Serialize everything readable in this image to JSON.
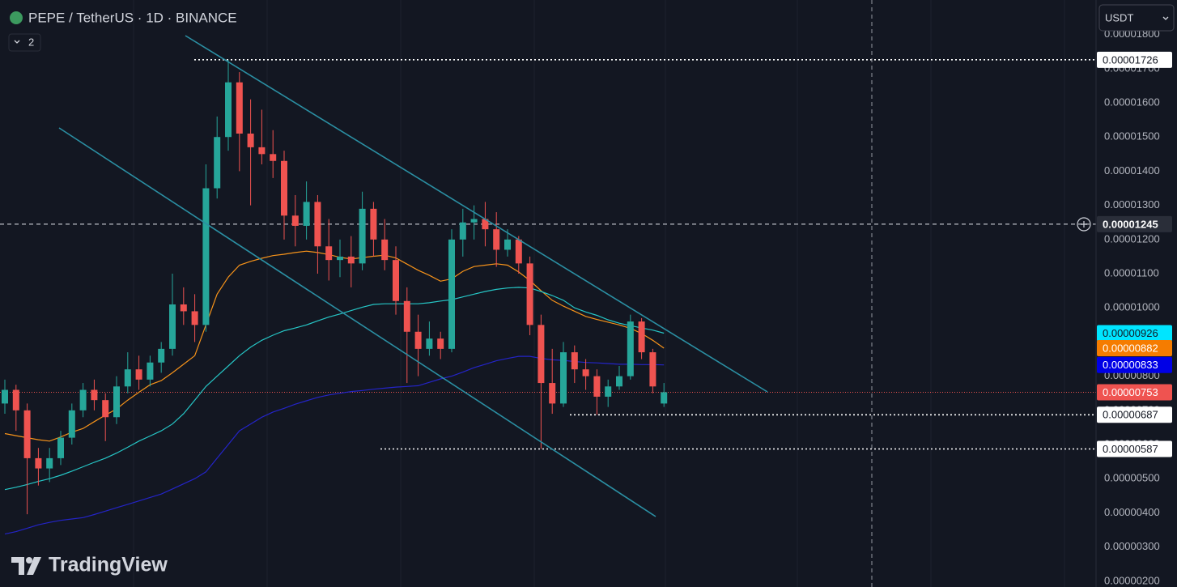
{
  "chart_data": {
    "type": "candlestick",
    "title": "PEPE / TetherUS · 1D · BINANCE",
    "indicator_count": "2",
    "currency": "USDT",
    "brand": "TradingView",
    "ylim": [
      1.83e-06,
      1.901e-05
    ],
    "grid": true,
    "up_color": "#26a69a",
    "down_color": "#ef5350",
    "yticks": [
      {
        "value": 1.8e-05,
        "label": "0.00001800"
      },
      {
        "value": 1.7e-05,
        "label": "0.00001700"
      },
      {
        "value": 1.6e-05,
        "label": "0.00001600"
      },
      {
        "value": 1.5e-05,
        "label": "0.00001500"
      },
      {
        "value": 1.4e-05,
        "label": "0.00001400"
      },
      {
        "value": 1.3e-05,
        "label": "0.00001300"
      },
      {
        "value": 1.2e-05,
        "label": "0.00001200"
      },
      {
        "value": 1.1e-05,
        "label": "0.00001100"
      },
      {
        "value": 1e-05,
        "label": "0.00001000"
      },
      {
        "value": 9e-06,
        "label": "0.00000900"
      },
      {
        "value": 8e-06,
        "label": "0.00000800"
      },
      {
        "value": 7e-06,
        "label": "0.00000700"
      },
      {
        "value": 6e-06,
        "label": "0.00000600"
      },
      {
        "value": 5e-06,
        "label": "0.00000500"
      },
      {
        "value": 4e-06,
        "label": "0.00000400"
      },
      {
        "value": 3e-06,
        "label": "0.00000300"
      },
      {
        "value": 2e-06,
        "label": "0.00000200"
      }
    ],
    "candles": {
      "open": [
        7.2e-06,
        7.6e-06,
        7e-06,
        5.6e-06,
        5.3e-06,
        5.6e-06,
        6.2e-06,
        7e-06,
        7.6e-06,
        7.3e-06,
        6.8e-06,
        7.7e-06,
        8.2e-06,
        7.9e-06,
        8.4e-06,
        8.8e-06,
        1.01e-05,
        9.9e-06,
        9.5e-06,
        1.35e-05,
        1.5e-05,
        1.66e-05,
        1.51e-05,
        1.47e-05,
        1.45e-05,
        1.43e-05,
        1.27e-05,
        1.24e-05,
        1.31e-05,
        1.18e-05,
        1.14e-05,
        1.15e-05,
        1.13e-05,
        1.29e-05,
        1.2e-05,
        1.14e-05,
        1.02e-05,
        9.3e-06,
        8.8e-06,
        9.1e-06,
        8.8e-06,
        1.2e-05,
        1.25e-05,
        1.26e-05,
        1.23e-05,
        1.17e-05,
        1.2e-05,
        1.13e-05,
        9.5e-06,
        7.8e-06,
        7.2e-06,
        8.7e-06,
        8.2e-06,
        8e-06,
        7.4e-06,
        7.7e-06,
        8e-06,
        9.6e-06,
        8.7e-06,
        7.2e-06
      ],
      "high": [
        7.9e-06,
        7.75e-06,
        7.2e-06,
        5.9e-06,
        5.9e-06,
        6.4e-06,
        7.2e-06,
        7.8e-06,
        7.9e-06,
        7.5e-06,
        8e-06,
        8.7e-06,
        8.6e-06,
        8.6e-06,
        9e-06,
        1.1e-05,
        1.06e-05,
        1.04e-05,
        1.42e-05,
        1.56e-05,
        1.726e-05,
        1.69e-05,
        1.61e-05,
        1.58e-05,
        1.52e-05,
        1.46e-05,
        1.33e-05,
        1.37e-05,
        1.33e-05,
        1.26e-05,
        1.2e-05,
        1.21e-05,
        1.34e-05,
        1.31e-05,
        1.26e-05,
        1.18e-05,
        1.06e-05,
        9.8e-06,
        9.6e-06,
        9.3e-06,
        1.23e-05,
        1.29e-05,
        1.3e-05,
        1.31e-05,
        1.28e-05,
        1.23e-05,
        1.21e-05,
        1.15e-05,
        9.8e-06,
        8.8e-06,
        9e-06,
        8.9e-06,
        8.5e-06,
        8.2e-06,
        7.9e-06,
        8.3e-06,
        9.8e-06,
        9.7e-06,
        8.8e-06,
        7.8e-06
      ],
      "low": [
        6.9e-06,
        6.4e-06,
        3.96e-06,
        4.8e-06,
        4.9e-06,
        5.4e-06,
        6e-06,
        6.8e-06,
        7e-06,
        6.1e-06,
        6.6e-06,
        7.5e-06,
        7.6e-06,
        7.7e-06,
        8.1e-06,
        8.6e-06,
        9.5e-06,
        9e-06,
        9.3e-06,
        1.32e-05,
        1.46e-05,
        1.4e-05,
        1.3e-05,
        1.42e-05,
        1.38e-05,
        1.2e-05,
        1.18e-05,
        1.2e-05,
        1.1e-05,
        1.08e-05,
        1.09e-05,
        1.06e-05,
        1.11e-05,
        1.15e-05,
        1.11e-05,
        9.8e-06,
        7.8e-06,
        8e-06,
        8.6e-06,
        8.5e-06,
        8.7e-06,
        1.15e-05,
        1.2e-05,
        1.18e-05,
        1.12e-05,
        1.15e-05,
        1.1e-05,
        9.2e-06,
        5.87e-06,
        6.9e-06,
        7.1e-06,
        7.8e-06,
        7.6e-06,
        6.87e-06,
        7.1e-06,
        7.6e-06,
        7.9e-06,
        8.5e-06,
        7.5e-06,
        7.1e-06
      ],
      "close": [
        7.6e-06,
        7e-06,
        5.6e-06,
        5.3e-06,
        5.6e-06,
        6.2e-06,
        7e-06,
        7.6e-06,
        7.3e-06,
        6.8e-06,
        7.7e-06,
        8.2e-06,
        7.9e-06,
        8.4e-06,
        8.8e-06,
        1.01e-05,
        9.9e-06,
        9.5e-06,
        1.35e-05,
        1.5e-05,
        1.66e-05,
        1.51e-05,
        1.47e-05,
        1.45e-05,
        1.43e-05,
        1.27e-05,
        1.24e-05,
        1.31e-05,
        1.18e-05,
        1.14e-05,
        1.15e-05,
        1.13e-05,
        1.29e-05,
        1.2e-05,
        1.14e-05,
        1.02e-05,
        9.3e-06,
        8.8e-06,
        9.1e-06,
        8.8e-06,
        1.2e-05,
        1.25e-05,
        1.26e-05,
        1.23e-05,
        1.17e-05,
        1.2e-05,
        1.13e-05,
        9.5e-06,
        7.8e-06,
        7.2e-06,
        8.7e-06,
        8.2e-06,
        8e-06,
        7.4e-06,
        7.7e-06,
        8e-06,
        9.6e-06,
        8.7e-06,
        7.7e-06,
        7.53e-06
      ]
    },
    "series": [
      {
        "color": "#f7931a",
        "values": [
          6.32e-06,
          6.26e-06,
          6.2e-06,
          6.14e-06,
          6.1e-06,
          6.22e-06,
          6.36e-06,
          6.47e-06,
          6.67e-06,
          6.86e-06,
          7.04e-06,
          7.3e-06,
          7.53e-06,
          7.75e-06,
          7.87e-06,
          8.1e-06,
          8.35e-06,
          8.6e-06,
          9.5e-06,
          1.04e-05,
          1.09e-05,
          1.125e-05,
          1.136e-05,
          1.145e-05,
          1.153e-05,
          1.157e-05,
          1.162e-05,
          1.166e-05,
          1.162e-05,
          1.156e-05,
          1.148e-05,
          1.143e-05,
          1.147e-05,
          1.151e-05,
          1.154e-05,
          1.146e-05,
          1.128e-05,
          1.11e-05,
          1.095e-05,
          1.078e-05,
          1.085e-05,
          1.107e-05,
          1.121e-05,
          1.125e-05,
          1.129e-05,
          1.125e-05,
          1.105e-05,
          1.08e-05,
          1.05e-05,
          1.022e-05,
          1.005e-05,
          9.9e-06,
          9.75e-06,
          9.66e-06,
          9.58e-06,
          9.5e-06,
          9.4e-06,
          9.25e-06,
          9.05e-06,
          8.82e-06
        ]
      },
      {
        "color": "#26c6c6",
        "values": [
          4.68e-06,
          4.75e-06,
          4.83e-06,
          4.92e-06,
          5e-06,
          5.1e-06,
          5.22e-06,
          5.35e-06,
          5.48e-06,
          5.6e-06,
          5.75e-06,
          5.92e-06,
          6.1e-06,
          6.25e-06,
          6.4e-06,
          6.6e-06,
          6.9e-06,
          7.3e-06,
          7.7e-06,
          8e-06,
          8.3e-06,
          8.6e-06,
          8.85e-06,
          9.05e-06,
          9.2e-06,
          9.33e-06,
          9.41e-06,
          9.5e-06,
          9.62e-06,
          9.73e-06,
          9.82e-06,
          9.92e-06,
          1.002e-05,
          1.01e-05,
          1.012e-05,
          1.012e-05,
          1.012e-05,
          1.012e-05,
          1.015e-05,
          1.02e-05,
          1.024e-05,
          1.032e-05,
          1.04e-05,
          1.048e-05,
          1.054e-05,
          1.058e-05,
          1.06e-05,
          1.058e-05,
          1.048e-05,
          1.036e-05,
          1.022e-05,
          1e-05,
          9.88e-06,
          9.78e-06,
          9.65e-06,
          9.55e-06,
          9.48e-06,
          9.41e-06,
          9.35e-06,
          9.26e-06
        ]
      },
      {
        "color": "#2424c8",
        "values": [
          3.38e-06,
          3.45e-06,
          3.55e-06,
          3.65e-06,
          3.72e-06,
          3.78e-06,
          3.82e-06,
          3.86e-06,
          3.95e-06,
          4.05e-06,
          4.15e-06,
          4.25e-06,
          4.35e-06,
          4.45e-06,
          4.55e-06,
          4.7e-06,
          4.85e-06,
          5e-06,
          5.2e-06,
          5.6e-06,
          6e-06,
          6.4e-06,
          6.6e-06,
          6.8e-06,
          6.95e-06,
          7.06e-06,
          7.18e-06,
          7.28e-06,
          7.38e-06,
          7.45e-06,
          7.5e-06,
          7.55e-06,
          7.58e-06,
          7.62e-06,
          7.65e-06,
          7.68e-06,
          7.7e-06,
          7.72e-06,
          7.82e-06,
          7.92e-06,
          8e-06,
          8.12e-06,
          8.25e-06,
          8.35e-06,
          8.45e-06,
          8.52e-06,
          8.58e-06,
          8.58e-06,
          8.52e-06,
          8.48e-06,
          8.46e-06,
          8.43e-06,
          8.4e-06,
          8.39e-06,
          8.37e-06,
          8.35e-06,
          8.35e-06,
          8.34e-06,
          8.34e-06,
          8.33e-06
        ]
      }
    ],
    "price_labels": [
      {
        "value": 1.726e-05,
        "label": "0.00001726",
        "color": "#ffffff",
        "text_color": "#131722"
      },
      {
        "value": 1.245e-05,
        "label": "0.00001245",
        "color": "#2a2e39",
        "text_color": "#ffffff"
      },
      {
        "value": 9.26e-06,
        "label": "0.00000926",
        "color": "#00e5ff",
        "text_color": "#131722"
      },
      {
        "value": 8.82e-06,
        "label": "0.00000882",
        "color": "#f57c00",
        "text_color": "#ffffff"
      },
      {
        "value": 8.33e-06,
        "label": "0.00000833",
        "color": "#0000e6",
        "text_color": "#ffffff"
      },
      {
        "value": 7.53e-06,
        "label": "0.00000753",
        "color": "#ef5350",
        "text_color": "#ffffff"
      },
      {
        "value": 6.87e-06,
        "label": "0.00000687",
        "color": "#ffffff",
        "text_color": "#131722"
      },
      {
        "value": 5.87e-06,
        "label": "0.00000587",
        "color": "#ffffff",
        "text_color": "#131722"
      }
    ]
  }
}
